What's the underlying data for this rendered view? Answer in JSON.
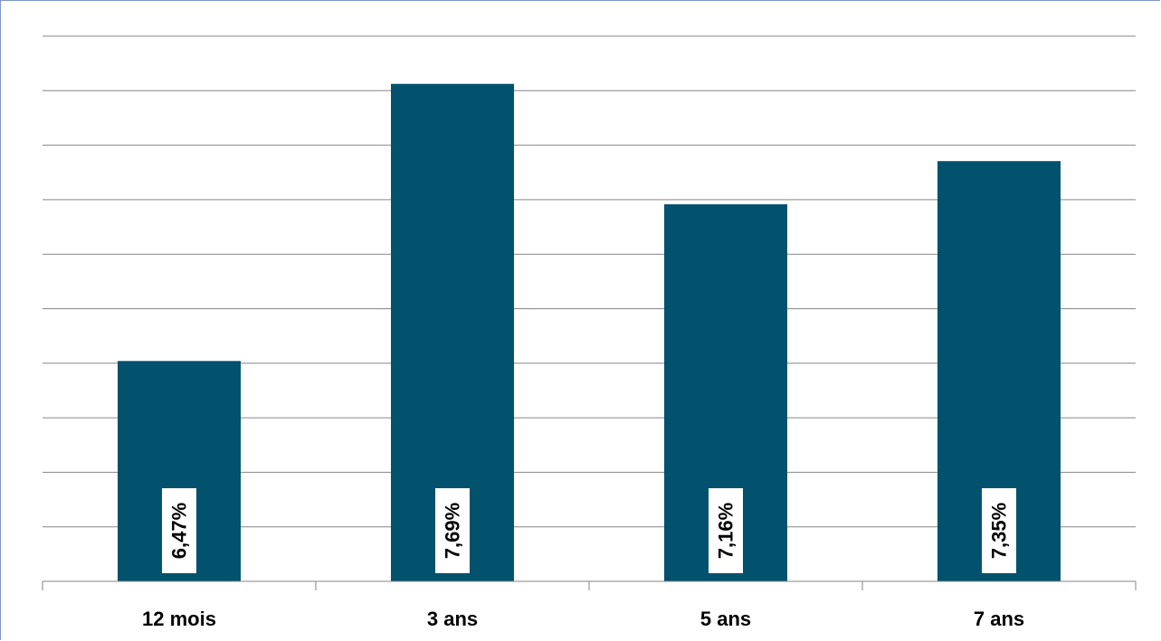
{
  "chart_data": {
    "type": "bar",
    "categories": [
      "12 mois",
      "3 ans",
      "5 ans",
      "7 ans"
    ],
    "values": [
      6.47,
      7.69,
      7.16,
      7.35
    ],
    "value_labels": [
      "6,47%",
      "7,69%",
      "7,16%",
      "7,35%"
    ],
    "title": "",
    "xlabel": "",
    "ylabel": "",
    "ylim": [
      5.5,
      7.9
    ],
    "grid": true,
    "legend": "none",
    "colors": {
      "bar": "#02526e",
      "grid": "#868686",
      "axis": "#868686",
      "label_bg": "#ffffff"
    }
  }
}
